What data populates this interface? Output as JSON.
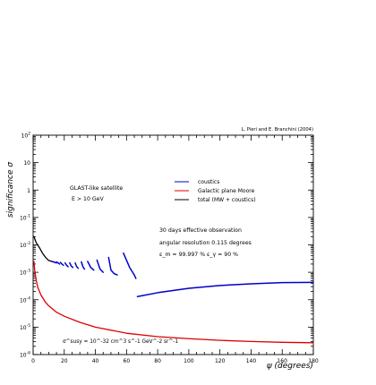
{
  "chart_data": {
    "type": "line",
    "credit": "L. Pieri and E. Branchini (2004)",
    "xlabel": "ψ (degrees)",
    "ylabel": "significance σ",
    "x_ticks": [
      "0",
      "20",
      "40",
      "60",
      "80",
      "100",
      "120",
      "140",
      "160",
      "180"
    ],
    "y_ticks": [
      {
        "base": "10",
        "exp": "-6"
      },
      {
        "base": "10",
        "exp": "-5"
      },
      {
        "base": "10",
        "exp": "-4"
      },
      {
        "base": "10",
        "exp": "-3"
      },
      {
        "base": "10",
        "exp": "-2"
      },
      {
        "base": "10",
        "exp": "-1"
      },
      {
        "base": "1",
        "exp": ""
      },
      {
        "base": "10",
        "exp": ""
      },
      {
        "base": "10",
        "exp": "2"
      }
    ],
    "xlim": [
      0,
      180
    ],
    "ylim": [
      1e-06,
      100
    ],
    "y_scale": "log",
    "legend": [
      {
        "label": "coustics",
        "color": "#0000cc"
      },
      {
        "label": "Galactic plane Moore",
        "color": "#dd0000"
      },
      {
        "label": "total (MW + coustics)",
        "color": "#000000"
      }
    ],
    "annotations": {
      "satellite": "GLAST-like satellite",
      "energy": "E > 10 GeV",
      "observation": "30 days effective observation",
      "resolution": "angular resolution 0.115 degrees",
      "efficiencies": "ε_m = 99.997 %   ε_γ = 90 %",
      "cross_section": "σ^susy = 10^-32 cm^3 s^-1 GeV^-2 sr^-1"
    },
    "series": [
      {
        "name": "Galactic plane Moore",
        "color": "#dd0000",
        "x": [
          0.5,
          1,
          2,
          3,
          5,
          8,
          10,
          15,
          20,
          30,
          40,
          60,
          80,
          100,
          120,
          140,
          160,
          180
        ],
        "y": [
          0.0025,
          0.0012,
          0.0005,
          0.00028,
          0.00015,
          8e-05,
          6e-05,
          3.5e-05,
          2.5e-05,
          1.5e-05,
          1e-05,
          6e-06,
          4.5e-06,
          3.8e-06,
          3.3e-06,
          3e-06,
          2.8e-06,
          2.7e-06
        ]
      },
      {
        "name": "total (MW + coustics)",
        "color": "#000000",
        "x": [
          0.5,
          2,
          4,
          6,
          8,
          10,
          12,
          13
        ],
        "y": [
          0.02,
          0.012,
          0.008,
          0.005,
          0.0035,
          0.0027,
          0.0025,
          0.0024
        ]
      },
      {
        "name": "coustics",
        "color": "#0000cc",
        "segments": [
          {
            "x": [
              12,
              13,
              14,
              15
            ],
            "y": [
              0.0025,
              0.0024,
              0.0023,
              0.0022
            ]
          },
          {
            "x": [
              15,
              16,
              17
            ],
            "y": [
              0.0024,
              0.0022,
              0.002
            ]
          },
          {
            "x": [
              17.5,
              18.5,
              19.5
            ],
            "y": [
              0.0023,
              0.002,
              0.0018
            ]
          },
          {
            "x": [
              20.5,
              21.5,
              22.5
            ],
            "y": [
              0.0022,
              0.0018,
              0.0016
            ]
          },
          {
            "x": [
              23.5,
              24.5,
              25.5
            ],
            "y": [
              0.0022,
              0.0017,
              0.0015
            ]
          },
          {
            "x": [
              27,
              28,
              29
            ],
            "y": [
              0.0022,
              0.0016,
              0.0014
            ]
          },
          {
            "x": [
              31,
              32,
              33
            ],
            "y": [
              0.0024,
              0.0016,
              0.0013
            ]
          },
          {
            "x": [
              35,
              37,
              39
            ],
            "y": [
              0.0025,
              0.0015,
              0.0012
            ]
          },
          {
            "x": [
              41,
              43,
              45
            ],
            "y": [
              0.0028,
              0.0013,
              0.001
            ]
          },
          {
            "x": [
              48.5,
              50,
              52,
              54
            ],
            "y": [
              0.0035,
              0.0012,
              0.0009,
              0.0008
            ]
          },
          {
            "x": [
              58,
              62,
              65,
              66
            ],
            "y": [
              0.005,
              0.0015,
              0.0008,
              0.0006
            ]
          },
          {
            "x": [
              67,
              80,
              100,
              120,
              140,
              160,
              180
            ],
            "y": [
              0.00013,
              0.00018,
              0.00026,
              0.00033,
              0.00038,
              0.00042,
              0.00043
            ]
          }
        ]
      }
    ]
  }
}
